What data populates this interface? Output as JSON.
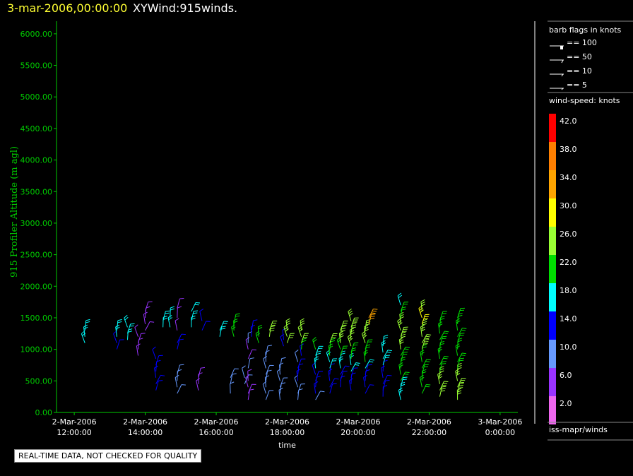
{
  "header": {
    "time": "3-mar-2006,00:00:00",
    "title": "XYWind:915winds."
  },
  "notice": "REAL-TIME DATA, NOT CHECKED FOR QUALITY",
  "legend": {
    "barb_title": "barb flags in knots",
    "barb_items": [
      "== 100",
      "== 50",
      "== 10",
      "== 5"
    ],
    "speed_title": "wind-speed: knots",
    "source": "iss-mapr/winds",
    "colorbar": [
      {
        "label": "42.0",
        "color": "#ff0000"
      },
      {
        "label": "38.0",
        "color": "#ff7f00"
      },
      {
        "label": "34.0",
        "color": "#ffa500"
      },
      {
        "label": "30.0",
        "color": "#ffff00"
      },
      {
        "label": "26.0",
        "color": "#99ff33"
      },
      {
        "label": "22.0",
        "color": "#00dd00"
      },
      {
        "label": "18.0",
        "color": "#00ffff"
      },
      {
        "label": "14.0",
        "color": "#0000ff"
      },
      {
        "label": "10.0",
        "color": "#6699ff"
      },
      {
        "label": "6.0",
        "color": "#9933ff"
      },
      {
        "label": "2.0",
        "color": "#ee66ee"
      }
    ]
  },
  "chart_data": {
    "type": "scatter",
    "ylabel": "915 Profiler Altitude (m agl)",
    "xlabel": "time",
    "ylim": [
      0,
      6200
    ],
    "xlim_hours": [
      11.5,
      24.5
    ],
    "yticks": [
      "0.00",
      "500.00",
      "1000.00",
      "1500.00",
      "2000.00",
      "2500.00",
      "3000.00",
      "3500.00",
      "4000.00",
      "4500.00",
      "5000.00",
      "5500.00",
      "6000.00"
    ],
    "xticks": [
      {
        "hour": 12,
        "date": "2-Mar-2006",
        "time": "12:00:00"
      },
      {
        "hour": 14,
        "date": "2-Mar-2006",
        "time": "14:00:00"
      },
      {
        "hour": 16,
        "date": "2-Mar-2006",
        "time": "16:00:00"
      },
      {
        "hour": 18,
        "date": "2-Mar-2006",
        "time": "18:00:00"
      },
      {
        "hour": 20,
        "date": "2-Mar-2006",
        "time": "20:00:00"
      },
      {
        "hour": 22,
        "date": "2-Mar-2006",
        "time": "22:00:00"
      },
      {
        "hour": 24,
        "date": "3-Mar-2006",
        "time": "0:00:00"
      }
    ],
    "colors": {
      "axis": "#00cc00",
      "text": "#ffffff"
    },
    "profiles": [
      {
        "hour": 12.3,
        "altitudes": [
          1100,
          1200,
          1300
        ],
        "speeds": [
          18,
          18,
          18
        ]
      },
      {
        "hour": 13.2,
        "altitudes": [
          1000,
          1100,
          1200,
          1300
        ],
        "speeds": [
          14,
          14,
          18,
          18
        ]
      },
      {
        "hour": 13.5,
        "altitudes": [
          1150,
          1250,
          1350
        ],
        "speeds": [
          18,
          18,
          18
        ]
      },
      {
        "hour": 13.8,
        "altitudes": [
          900,
          1000,
          1100,
          1200
        ],
        "speeds": [
          6,
          6,
          6,
          6
        ]
      },
      {
        "hour": 14.0,
        "altitudes": [
          1300,
          1400,
          1500,
          1600
        ],
        "speeds": [
          6,
          6,
          6,
          6
        ]
      },
      {
        "hour": 14.3,
        "altitudes": [
          350,
          450,
          550,
          650,
          750,
          850
        ],
        "speeds": [
          14,
          14,
          14,
          14,
          14,
          14
        ]
      },
      {
        "hour": 14.5,
        "altitudes": [
          1350,
          1450
        ],
        "speeds": [
          18,
          18
        ]
      },
      {
        "hour": 14.7,
        "altitudes": [
          1350,
          1500
        ],
        "speeds": [
          18,
          18
        ]
      },
      {
        "hour": 14.9,
        "altitudes": [
          300,
          400,
          500,
          600
        ],
        "speeds": [
          10,
          10,
          10,
          10
        ]
      },
      {
        "hour": 14.9,
        "altitudes": [
          1000,
          1100,
          1300,
          1500,
          1650
        ],
        "speeds": [
          14,
          14,
          6,
          6,
          6
        ]
      },
      {
        "hour": 15.3,
        "altitudes": [
          1350,
          1450,
          1600
        ],
        "speeds": [
          18,
          18,
          18
        ]
      },
      {
        "hour": 15.5,
        "altitudes": [
          350,
          450,
          550
        ],
        "speeds": [
          6,
          6,
          6
        ]
      },
      {
        "hour": 15.6,
        "altitudes": [
          1300,
          1450
        ],
        "speeds": [
          14,
          14
        ]
      },
      {
        "hour": 16.1,
        "altitudes": [
          1200,
          1300
        ],
        "speeds": [
          18,
          18
        ]
      },
      {
        "hour": 16.4,
        "altitudes": [
          300,
          450,
          550
        ],
        "speeds": [
          10,
          10,
          10
        ]
      },
      {
        "hour": 16.5,
        "altitudes": [
          1200,
          1300,
          1400
        ],
        "speeds": [
          22,
          22,
          22
        ]
      },
      {
        "hour": 16.8,
        "altitudes": [
          450,
          550
        ],
        "speeds": [
          10,
          10
        ]
      },
      {
        "hour": 16.9,
        "altitudes": [
          200,
          300,
          400,
          500,
          700,
          850,
          1000,
          1100
        ],
        "speeds": [
          6,
          6,
          6,
          6,
          10,
          6,
          6,
          10
        ]
      },
      {
        "hour": 17.0,
        "altitudes": [
          1200,
          1300
        ],
        "speeds": [
          14,
          14
        ]
      },
      {
        "hour": 17.2,
        "altitudes": [
          1100,
          1200
        ],
        "speeds": [
          22,
          22
        ]
      },
      {
        "hour": 17.4,
        "altitudes": [
          200,
          300,
          400,
          500,
          600,
          700,
          800,
          900
        ],
        "speeds": [
          10,
          10,
          10,
          10,
          10,
          10,
          10,
          10
        ]
      },
      {
        "hour": 17.5,
        "altitudes": [
          1200,
          1300
        ],
        "speeds": [
          26,
          26
        ]
      },
      {
        "hour": 17.8,
        "altitudes": [
          200,
          300,
          400,
          500,
          600,
          700
        ],
        "speeds": [
          10,
          10,
          10,
          10,
          10,
          10
        ]
      },
      {
        "hour": 17.9,
        "altitudes": [
          1050,
          1150
        ],
        "speeds": [
          14,
          14
        ]
      },
      {
        "hour": 18.0,
        "altitudes": [
          1100,
          1200,
          1300
        ],
        "speeds": [
          26,
          26,
          26
        ]
      },
      {
        "hour": 18.3,
        "altitudes": [
          200,
          300,
          400,
          500,
          600,
          700,
          800
        ],
        "speeds": [
          10,
          10,
          10,
          14,
          14,
          14,
          10
        ]
      },
      {
        "hour": 18.4,
        "altitudes": [
          900,
          1000,
          1100,
          1200,
          1300
        ],
        "speeds": [
          14,
          22,
          26,
          26,
          26
        ]
      },
      {
        "hour": 18.8,
        "altitudes": [
          200,
          300,
          400,
          500,
          600,
          700,
          800,
          900,
          1000
        ],
        "speeds": [
          10,
          14,
          14,
          14,
          14,
          18,
          18,
          18,
          22
        ]
      },
      {
        "hour": 19.2,
        "altitudes": [
          300,
          400,
          500,
          600,
          700,
          800,
          900,
          1000,
          1100
        ],
        "speeds": [
          14,
          14,
          14,
          14,
          18,
          18,
          22,
          22,
          26
        ]
      },
      {
        "hour": 19.5,
        "altitudes": [
          400,
          500,
          600,
          700,
          800,
          900,
          1000,
          1100,
          1200,
          1300
        ],
        "speeds": [
          14,
          14,
          14,
          18,
          18,
          22,
          22,
          26,
          26,
          26
        ]
      },
      {
        "hour": 19.8,
        "altitudes": [
          350,
          450,
          550,
          650,
          750,
          850,
          950,
          1050,
          1150,
          1250,
          1350,
          1450
        ],
        "speeds": [
          14,
          14,
          14,
          18,
          18,
          22,
          22,
          26,
          26,
          26,
          26,
          26
        ]
      },
      {
        "hour": 20.2,
        "altitudes": [
          300,
          400,
          500,
          600,
          700,
          800,
          900,
          1000,
          1100,
          1200,
          1300
        ],
        "speeds": [
          14,
          14,
          14,
          14,
          18,
          22,
          22,
          22,
          26,
          26,
          26
        ]
      },
      {
        "hour": 20.3,
        "altitudes": [
          1400,
          1500
        ],
        "speeds": [
          34,
          34
        ]
      },
      {
        "hour": 20.7,
        "altitudes": [
          250,
          350,
          450,
          550,
          650,
          750,
          850,
          950,
          1050
        ],
        "speeds": [
          14,
          14,
          14,
          14,
          14,
          18,
          18,
          18,
          18
        ]
      },
      {
        "hour": 21.2,
        "altitudes": [
          200,
          300,
          400,
          500,
          600,
          700,
          800,
          900,
          1000,
          1100,
          1200,
          1300,
          1400,
          1500,
          1600,
          1700
        ],
        "speeds": [
          18,
          18,
          18,
          22,
          22,
          22,
          22,
          22,
          26,
          26,
          26,
          26,
          26,
          22,
          22,
          18
        ]
      },
      {
        "hour": 21.8,
        "altitudes": [
          300,
          400,
          500,
          600,
          700,
          800,
          900,
          1000,
          1100,
          1200,
          1300,
          1400,
          1500,
          1600
        ],
        "speeds": [
          22,
          22,
          22,
          22,
          22,
          22,
          22,
          26,
          26,
          26,
          26,
          30,
          30,
          26
        ]
      },
      {
        "hour": 22.3,
        "altitudes": [
          250,
          350,
          450,
          550,
          650,
          750,
          850,
          950,
          1050,
          1150,
          1250,
          1350,
          1450
        ],
        "speeds": [
          26,
          26,
          26,
          26,
          22,
          22,
          22,
          22,
          22,
          22,
          22,
          22,
          22
        ]
      },
      {
        "hour": 22.8,
        "altitudes": [
          200,
          300,
          400,
          500,
          600,
          700,
          800,
          900,
          1000,
          1100,
          1200,
          1300,
          1400,
          1500
        ],
        "speeds": [
          26,
          26,
          26,
          26,
          26,
          22,
          22,
          22,
          22,
          22,
          22,
          22,
          22,
          22
        ]
      }
    ]
  }
}
